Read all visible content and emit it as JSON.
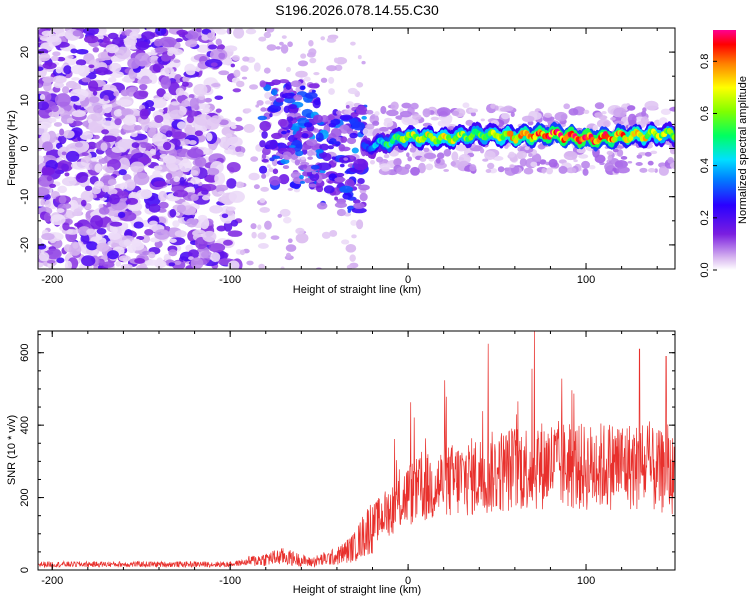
{
  "figure_title": "S196.2026.078.14.55.C30",
  "chart_data": [
    {
      "type": "heatmap",
      "title": "S196.2026.078.14.55.C30",
      "xlabel": "Height of straight line (km)",
      "ylabel": "Frequency (Hz)",
      "xlim": [
        -208,
        150
      ],
      "ylim": [
        -25,
        25
      ],
      "xticks": [
        -200,
        -100,
        0,
        100
      ],
      "yticks": [
        -20,
        -10,
        0,
        10,
        20
      ],
      "colorbar": {
        "label": "Normalized spectral amplitude",
        "range": [
          0.0,
          0.92
        ],
        "ticks": [
          0.0,
          0.2,
          0.4,
          0.6,
          0.8
        ]
      },
      "ridge": {
        "description": "narrow band of high amplitude near 0 Hz starting around -25 km",
        "x": [
          -25,
          -10,
          0,
          20,
          40,
          60,
          80,
          100,
          120,
          150
        ],
        "frequency": [
          0,
          1.5,
          2.5,
          2.0,
          3.0,
          2.5,
          3.0,
          2.0,
          2.5,
          3.0
        ],
        "amplitude": [
          0.3,
          0.55,
          0.65,
          0.7,
          0.6,
          0.75,
          0.85,
          0.9,
          0.8,
          0.6
        ]
      }
    },
    {
      "type": "line",
      "xlabel": "Height of straight line (km)",
      "ylabel": "SNR (10 * v/v)",
      "xlim": [
        -208,
        150
      ],
      "ylim": [
        0,
        660
      ],
      "xticks": [
        -200,
        -100,
        0,
        100
      ],
      "yticks": [
        0,
        200,
        400,
        600
      ],
      "series": [
        {
          "name": "SNR",
          "color": "#e8302c",
          "x": [
            -208,
            -150,
            -100,
            -85,
            -70,
            -55,
            -40,
            -30,
            -20,
            -10,
            0,
            20,
            40,
            60,
            80,
            100,
            120,
            140,
            150
          ],
          "baseline": [
            15,
            15,
            15,
            25,
            35,
            20,
            35,
            60,
            120,
            160,
            200,
            230,
            250,
            270,
            280,
            270,
            280,
            260,
            250
          ],
          "peaks": [
            {
              "x": 45,
              "value": 625
            },
            {
              "x": 71,
              "value": 660
            },
            {
              "x": 130,
              "value": 610
            },
            {
              "x": 145,
              "value": 590
            }
          ]
        }
      ]
    }
  ]
}
